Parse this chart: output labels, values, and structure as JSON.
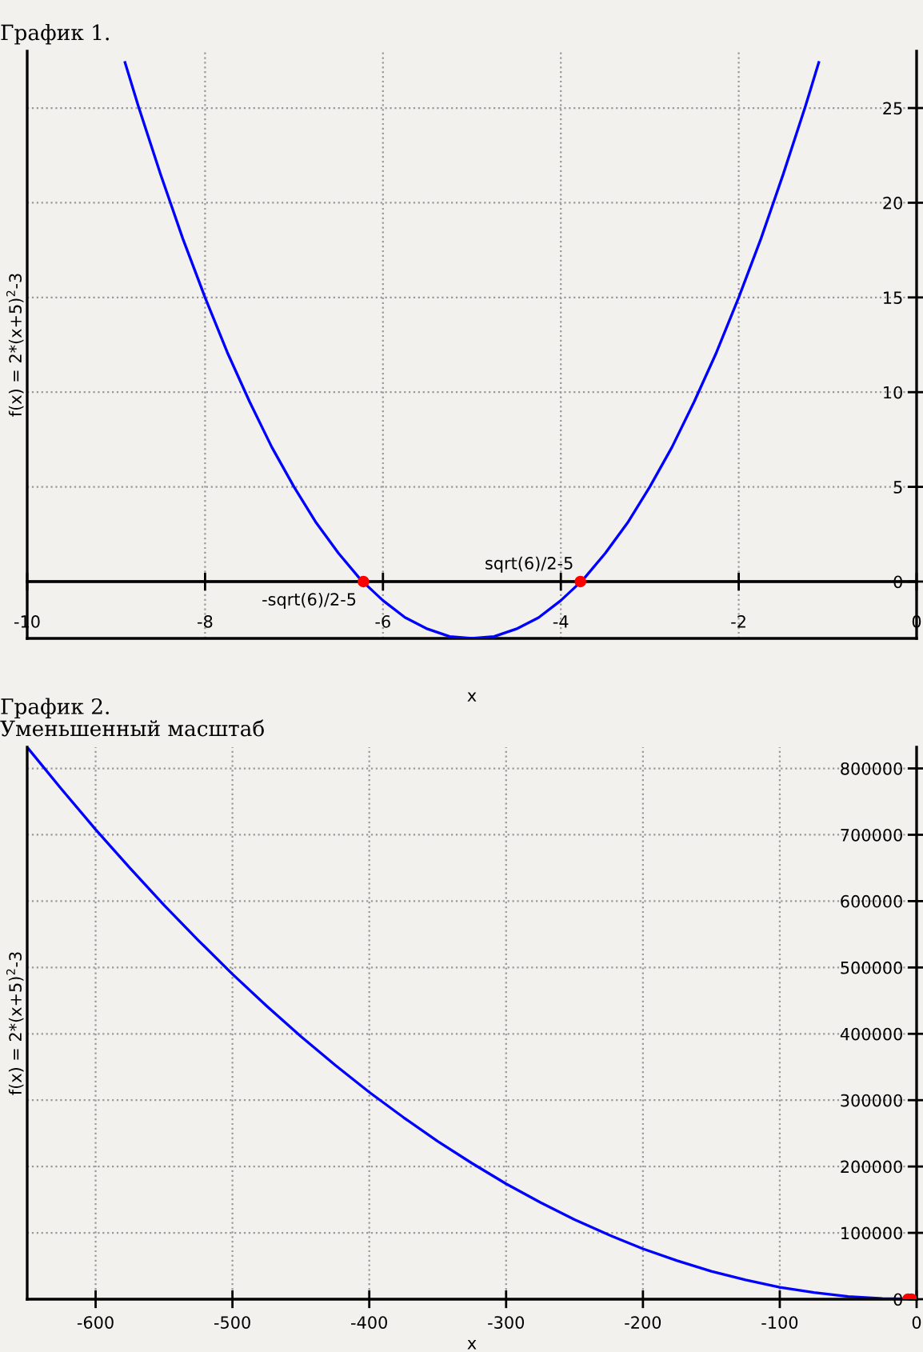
{
  "chart_data": [
    {
      "type": "line",
      "title": "График 1.",
      "xlabel": "x",
      "ylabel": "f(x) = 2*(x+5)$^{2}$-3",
      "xlim": [
        -10,
        0
      ],
      "ylim": [
        -3,
        28
      ],
      "xticks": [
        -10,
        -8,
        -6,
        -4,
        -2,
        0
      ],
      "yticks": [
        0,
        5,
        10,
        15,
        20,
        25
      ],
      "grid": true,
      "ref_lines": [
        {
          "axis": "y",
          "value": 0,
          "color": "#000000"
        }
      ],
      "annotations": [
        {
          "text": "-sqrt(6)/2-5",
          "x": -6.22,
          "y": 0
        },
        {
          "text": "sqrt(6)/2-5",
          "x": -3.78,
          "y": 0
        }
      ],
      "series": [
        {
          "type": "line",
          "color": "#0000ff",
          "marker": "none",
          "x": [
            -8.9,
            -8.75,
            -8.5,
            -8.25,
            -8,
            -7.75,
            -7.5,
            -7.25,
            -7,
            -6.75,
            -6.5,
            -6.25,
            -6,
            -5.75,
            -5.5,
            -5.25,
            -5,
            -4.75,
            -4.5,
            -4.25,
            -4,
            -3.75,
            -3.5,
            -3.25,
            -3,
            -2.75,
            -2.5,
            -2.25,
            -2,
            -1.75,
            -1.5,
            -1.25,
            -1.1
          ],
          "values": [
            27.4,
            25.1,
            21.5,
            18.1,
            15,
            12.1,
            9.5,
            7.1,
            5,
            3.1,
            1.5,
            0.1,
            -1,
            -1.9,
            -2.5,
            -2.9,
            -3,
            -2.9,
            -2.5,
            -1.9,
            -1,
            0.1,
            1.5,
            3.1,
            5,
            7.1,
            9.5,
            12.1,
            15,
            18.1,
            21.5,
            25.1,
            27.4
          ]
        },
        {
          "type": "scatter",
          "color": "#ff0000",
          "marker": "circle",
          "x": [
            -6.22,
            -3.78
          ],
          "values": [
            0,
            0
          ]
        }
      ]
    },
    {
      "type": "line",
      "title": "График 2.",
      "subtitle": "Уменьшенный масштаб",
      "xlabel": "x",
      "ylabel": "f(x) = 2*(x+5)$^{2}$-3",
      "xlim": [
        -650,
        0
      ],
      "ylim": [
        0,
        832000
      ],
      "xticks": [
        -600,
        -500,
        -400,
        -300,
        -200,
        -100,
        0
      ],
      "yticks": [
        0,
        100000,
        200000,
        300000,
        400000,
        500000,
        600000,
        700000,
        800000
      ],
      "grid": true,
      "series": [
        {
          "type": "line",
          "color": "#0000ff",
          "marker": "none",
          "x": [
            -650,
            -625,
            -600,
            -575,
            -550,
            -525,
            -500,
            -475,
            -450,
            -425,
            -400,
            -375,
            -350,
            -325,
            -300,
            -275,
            -250,
            -225,
            -200,
            -175,
            -150,
            -125,
            -100,
            -75,
            -50,
            -25,
            0
          ],
          "values": [
            832000,
            769000,
            708000,
            650000,
            594000,
            541000,
            490000,
            442000,
            396000,
            353000,
            312000,
            274000,
            238000,
            205000,
            174000,
            146000,
            120000,
            97000,
            76000,
            58000,
            42000,
            29000,
            18000,
            10000,
            4000,
            1000,
            0
          ]
        },
        {
          "type": "scatter",
          "color": "#ff0000",
          "marker": "circle",
          "x": [
            -6.22,
            -3.78
          ],
          "values": [
            0,
            0
          ]
        }
      ]
    }
  ]
}
